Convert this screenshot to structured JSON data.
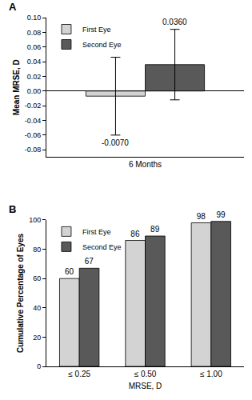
{
  "chart_data": [
    {
      "type": "bar",
      "title": "A",
      "categories": [
        "6 Months"
      ],
      "series": [
        {
          "name": "First Eye",
          "color": "#d3d3d3",
          "values": [
            -0.007
          ],
          "value_labels": [
            "-0.0070"
          ],
          "error": [
            0.053
          ]
        },
        {
          "name": "Second Eye",
          "color": "#595959",
          "values": [
            0.036
          ],
          "value_labels": [
            "0.0360"
          ],
          "error": [
            0.048
          ]
        }
      ],
      "y_label": "Mean MRSE, D",
      "ylim": [
        -0.09,
        0.1
      ],
      "yticks": [
        {
          "value": -0.08,
          "label": "-0.08"
        },
        {
          "value": -0.06,
          "label": "-0.06"
        },
        {
          "value": -0.04,
          "label": "-0.04"
        },
        {
          "value": -0.02,
          "label": "-0.02"
        },
        {
          "value": 0,
          "label": "0.00"
        },
        {
          "value": 0.02,
          "label": "0.02"
        },
        {
          "value": 0.04,
          "label": "0.04"
        },
        {
          "value": 0.06,
          "label": "0.06"
        },
        {
          "value": 0.08,
          "label": "0.08"
        },
        {
          "value": 0.1,
          "label": "0.10"
        }
      ],
      "data_labels": true,
      "legend": "top-left",
      "grid": false
    },
    {
      "type": "bar",
      "title": "B",
      "categories": [
        "≤ 0.25",
        "≤ 0.50",
        "≤ 1.00"
      ],
      "series": [
        {
          "name": "First Eye",
          "color": "#d3d3d3",
          "values": [
            60,
            86,
            98
          ]
        },
        {
          "name": "Second Eye",
          "color": "#595959",
          "values": [
            67,
            89,
            99
          ]
        }
      ],
      "x_label": "MRSE, D",
      "y_label": "Cumulative Percentage of Eyes",
      "ylim": [
        0,
        100
      ],
      "yticks": [
        0,
        20,
        40,
        60,
        80,
        100
      ],
      "data_labels": true,
      "legend": "top-left",
      "grid": false
    }
  ]
}
